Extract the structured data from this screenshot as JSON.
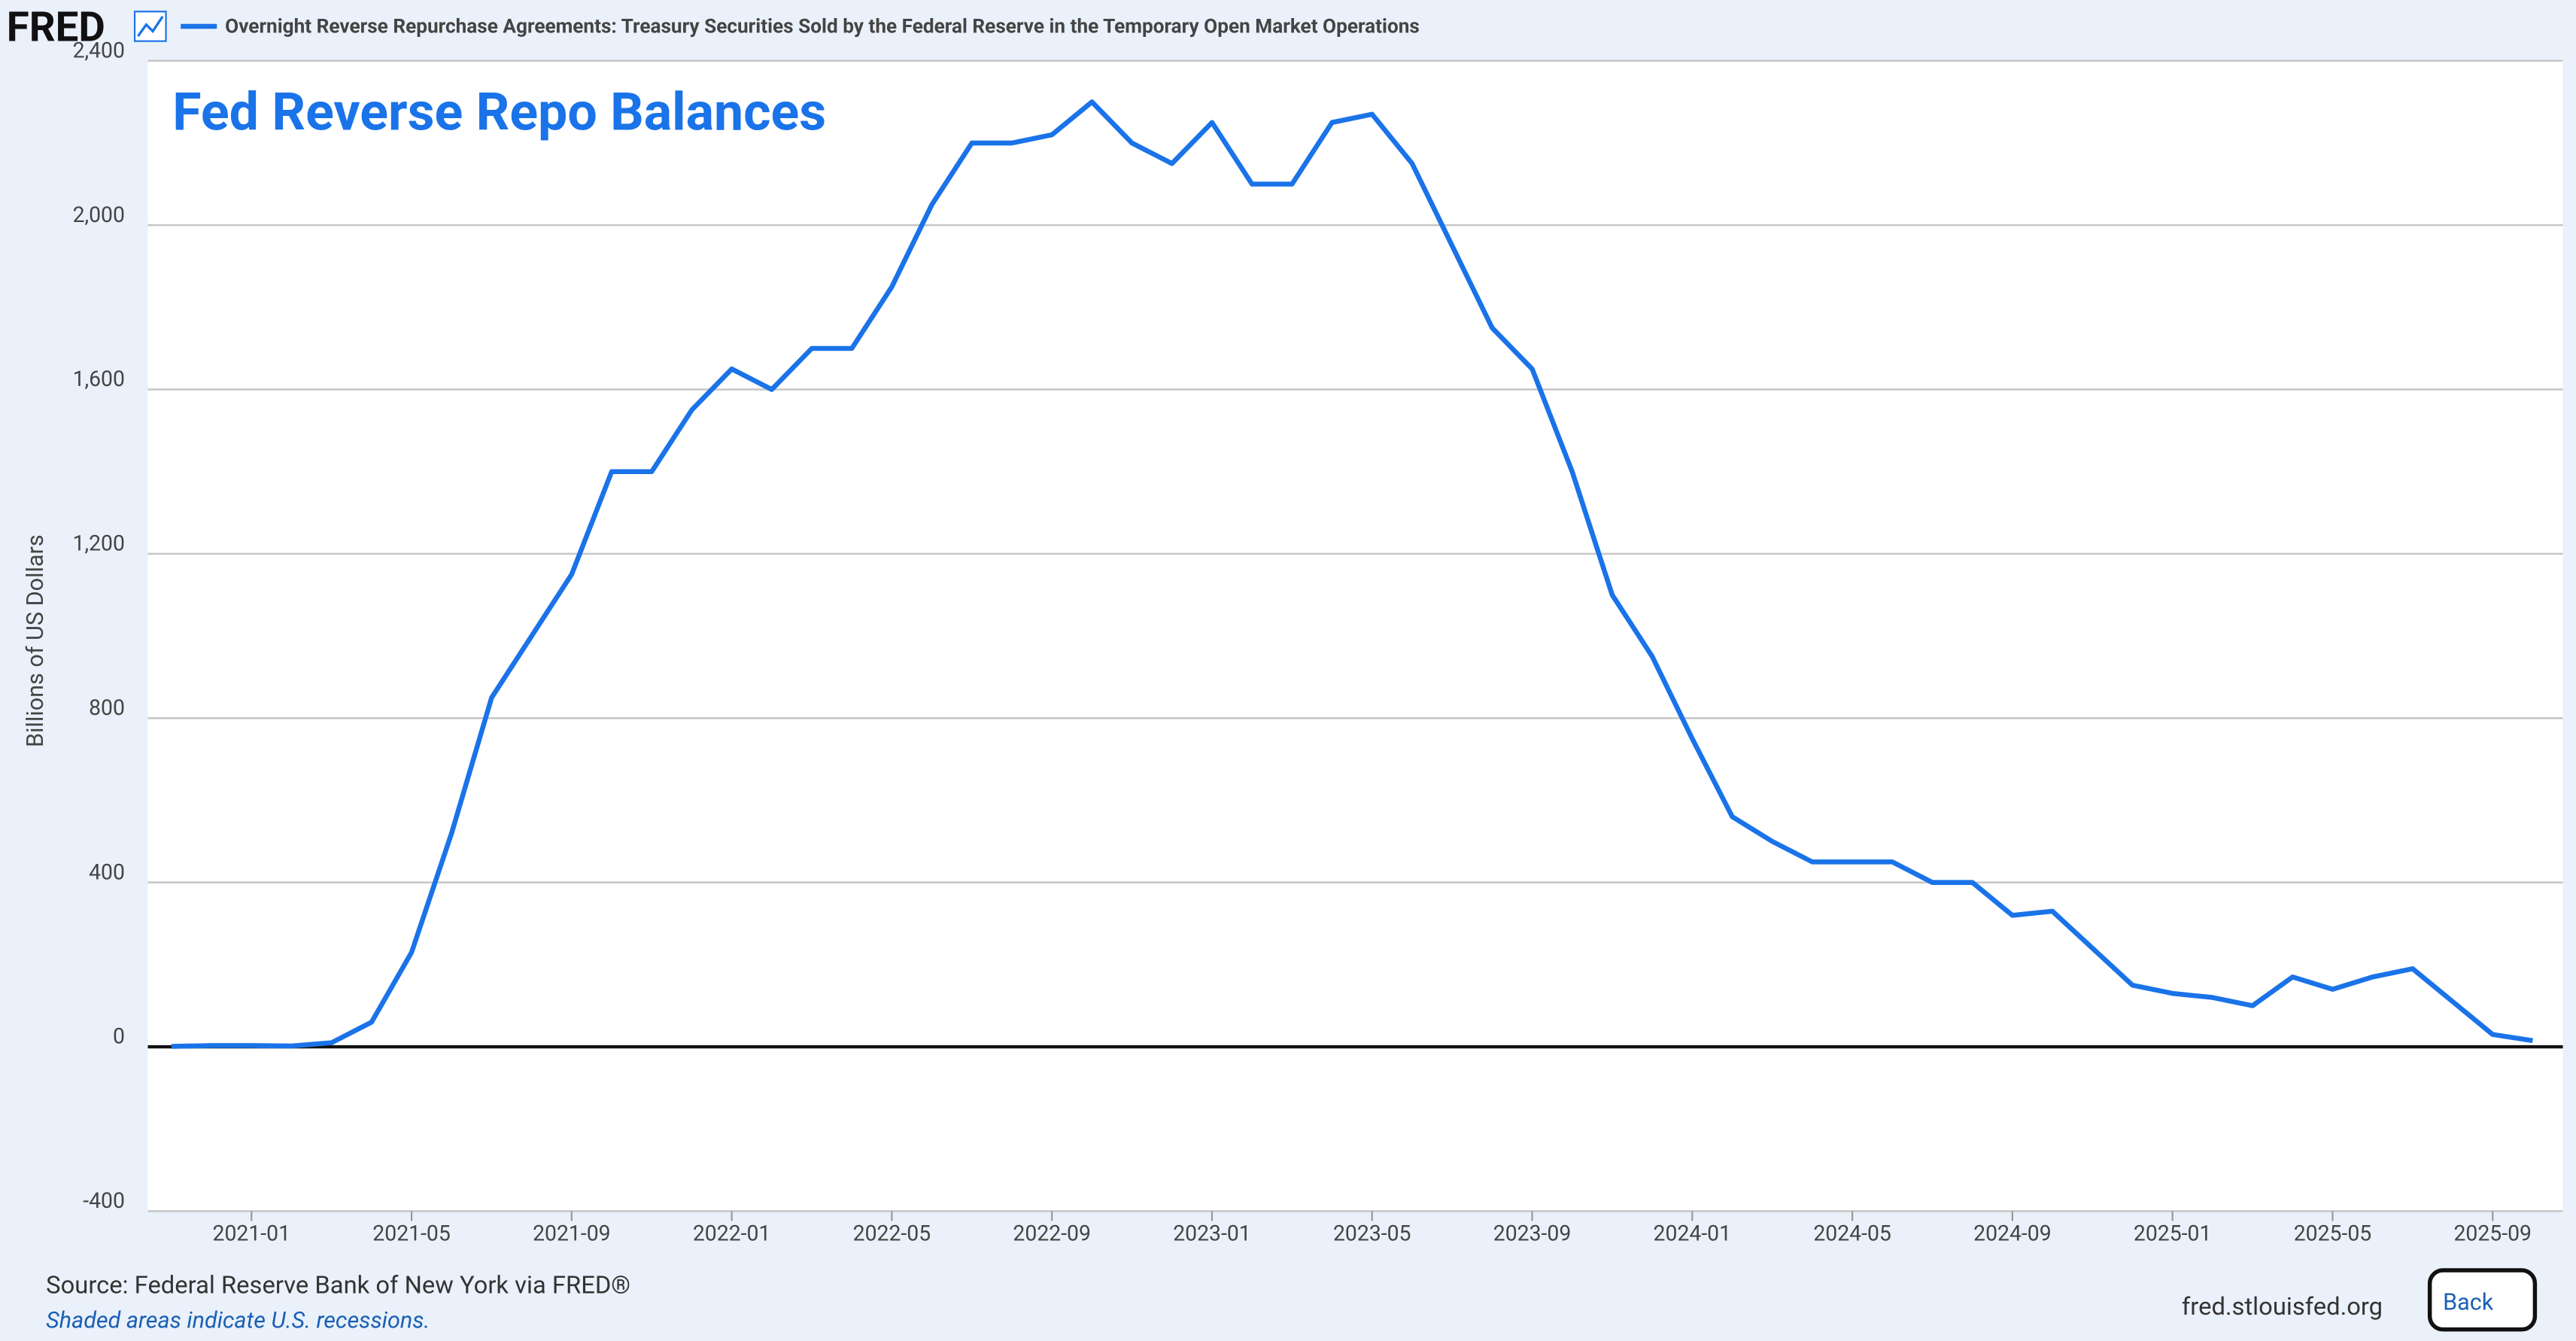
{
  "chart_data": {
    "type": "line",
    "brand": "FRED",
    "legend_title": "Overnight Reverse Repurchase Agreements: Treasury Securities Sold by the Federal Reserve in the Temporary Open Market Operations",
    "annotation": "Fed Reverse Repo Balances",
    "ylabel": "Billions of US Dollars",
    "source": "Source: Federal Reserve Bank of New York via FRED®",
    "note": "Shaded areas indicate U.S. recessions.",
    "site": "fred.stlouisfed.org",
    "button": "Back",
    "x": [
      "2020-11",
      "2020-12",
      "2021-01",
      "2021-02",
      "2021-03",
      "2021-04",
      "2021-05",
      "2021-06",
      "2021-07",
      "2021-08",
      "2021-09",
      "2021-10",
      "2021-11",
      "2021-12",
      "2022-01",
      "2022-02",
      "2022-03",
      "2022-04",
      "2022-05",
      "2022-06",
      "2022-07",
      "2022-08",
      "2022-09",
      "2022-10",
      "2022-11",
      "2022-12",
      "2023-01",
      "2023-02",
      "2023-03",
      "2023-04",
      "2023-05",
      "2023-06",
      "2023-07",
      "2023-08",
      "2023-09",
      "2023-10",
      "2023-11",
      "2023-12",
      "2024-01",
      "2024-02",
      "2024-03",
      "2024-04",
      "2024-05",
      "2024-06",
      "2024-07",
      "2024-08",
      "2024-09",
      "2024-10",
      "2024-11",
      "2024-12",
      "2025-01",
      "2025-02",
      "2025-03",
      "2025-04",
      "2025-05",
      "2025-06",
      "2025-07",
      "2025-08",
      "2025-09",
      "2025-10"
    ],
    "series": [
      {
        "name": "Overnight Reverse Repurchase Agreements",
        "color": "#1a73e8",
        "values": [
          1,
          3,
          3,
          2,
          10,
          60,
          230,
          520,
          850,
          1000,
          1150,
          1400,
          1400,
          1550,
          1650,
          1600,
          1700,
          1700,
          1850,
          2050,
          2200,
          2200,
          2220,
          2300,
          2200,
          2150,
          2250,
          2100,
          2100,
          2250,
          2270,
          2150,
          1950,
          1750,
          1650,
          1400,
          1100,
          950,
          750,
          560,
          500,
          450,
          450,
          450,
          400,
          400,
          320,
          330,
          240,
          150,
          130,
          120,
          100,
          170,
          140,
          170,
          190,
          110,
          30,
          15
        ]
      }
    ],
    "xlim": [
      "2020-10",
      "2025-11"
    ],
    "xticks": [
      "2021-01",
      "2021-05",
      "2021-09",
      "2022-01",
      "2022-05",
      "2022-09",
      "2023-01",
      "2023-05",
      "2023-09",
      "2024-01",
      "2024-05",
      "2024-09",
      "2025-01",
      "2025-05",
      "2025-09"
    ],
    "ylim": [
      -400,
      2400
    ],
    "yticks": [
      -400,
      0,
      400,
      800,
      {
        "value": 1200,
        "label": "1,200"
      },
      {
        "value": 1600,
        "label": "1,600"
      },
      {
        "value": 2000,
        "label": "2,000"
      },
      {
        "value": 2400,
        "label": "2,400"
      }
    ],
    "grid": true
  }
}
